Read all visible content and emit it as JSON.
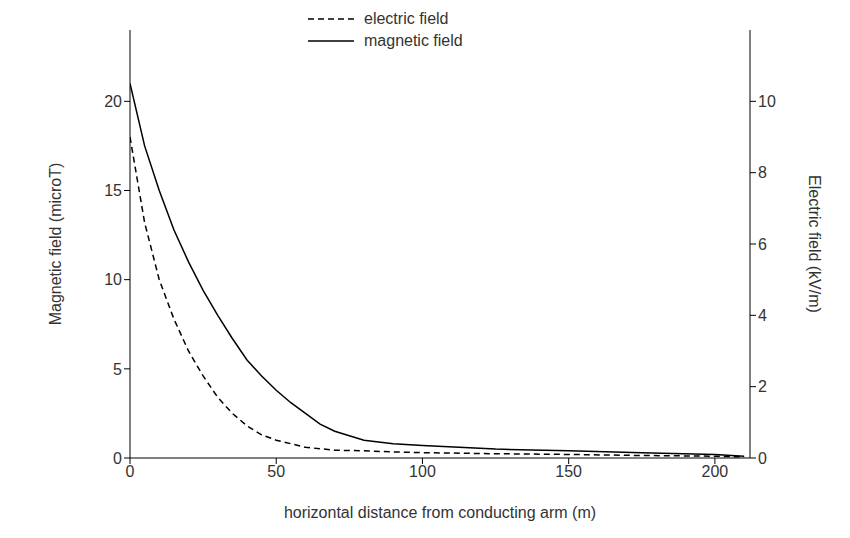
{
  "chart_data": {
    "type": "line",
    "x_label": "horizontal distance from conducting arm (m)",
    "y_label": "Magnetic field (microT)",
    "y2_label": "Electric field (kV/m)",
    "x": [
      0,
      5,
      10,
      15,
      20,
      25,
      30,
      35,
      40,
      45,
      50,
      55,
      60,
      65,
      70,
      80,
      90,
      100,
      125,
      150,
      175,
      200,
      210
    ],
    "series": [
      {
        "name": "electric field",
        "color": "#000000",
        "line_style": "dashed",
        "marker": "none",
        "axis": "y2",
        "values": [
          9,
          6.6,
          5,
          3.9,
          3,
          2.3,
          1.7,
          1.25,
          0.9,
          0.65,
          0.5,
          0.4,
          0.3,
          0.26,
          0.22,
          0.2,
          0.17,
          0.15,
          0.12,
          0.1,
          0.07,
          0.05,
          0.03
        ]
      },
      {
        "name": "magnetic field",
        "color": "#000000",
        "line_style": "solid",
        "marker": "none",
        "values": [
          21,
          17.5,
          15,
          12.8,
          11,
          9.4,
          8,
          6.7,
          5.5,
          4.6,
          3.8,
          3.1,
          2.5,
          1.9,
          1.5,
          1,
          0.8,
          0.7,
          0.5,
          0.4,
          0.3,
          0.2,
          0.1
        ]
      }
    ],
    "xlim": [
      0,
      212
    ],
    "xticks": [
      0,
      50,
      100,
      150,
      200
    ],
    "ylim": [
      0,
      24
    ],
    "yticks": [
      0,
      5,
      10,
      15,
      20
    ],
    "y2lim": [
      0,
      12
    ],
    "y2ticks": [
      0,
      2,
      4,
      6,
      8,
      10
    ],
    "grid": false,
    "legend": "top"
  }
}
